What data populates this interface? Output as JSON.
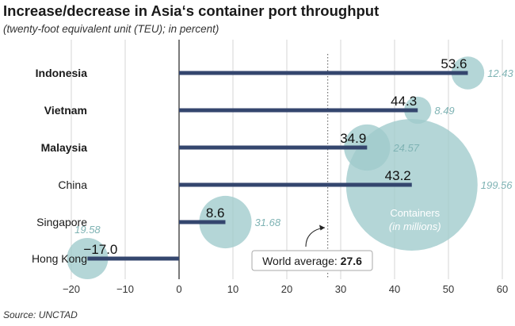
{
  "title": "Increase/decrease in Asia‘s container port throughput",
  "subtitle": "(twenty-foot equivalent unit (TEU); in percent)",
  "source": "Source: UNCTAD",
  "chart_data": {
    "type": "bar",
    "orientation": "horizontal",
    "title": "Increase/decrease in Asia‘s container port throughput",
    "subtitle": "(twenty-foot equivalent unit (TEU); in percent)",
    "categories": [
      "Indonesia",
      "Vietnam",
      "Malaysia",
      "China",
      "Singapore",
      "Hong Kong"
    ],
    "category_bold": [
      true,
      true,
      true,
      false,
      false,
      false
    ],
    "values": [
      53.6,
      44.3,
      34.9,
      43.2,
      8.6,
      -17.0
    ],
    "value_labels": [
      "53.6",
      "44.3",
      "34.9",
      "43.2",
      "8.6",
      "−17.0"
    ],
    "bubbles": {
      "values": [
        12.43,
        8.49,
        24.57,
        199.56,
        31.68,
        19.58
      ],
      "labels": [
        "12.43",
        "8.49",
        "24.57",
        "199.56",
        "31.68",
        "19.58"
      ],
      "legend_title": "Containers",
      "legend_subtitle": "(in millions)"
    },
    "xlim": [
      -20,
      60
    ],
    "xticks": [
      -20,
      -10,
      0,
      10,
      20,
      30,
      40,
      50,
      60
    ],
    "xtick_labels": [
      "−20",
      "−10",
      "0",
      "10",
      "20",
      "30",
      "40",
      "50",
      "60"
    ],
    "reference_line": {
      "value": 27.6,
      "label": "World average:",
      "value_label": "27.6"
    },
    "grid": "vertical",
    "colors": {
      "bar": "#34466e",
      "bubble": "#9fcbcc",
      "bubble_label": "#7fb3b4",
      "grid": "#d6d6d6",
      "text": "#1a1a1a"
    },
    "source": "Source: UNCTAD"
  }
}
